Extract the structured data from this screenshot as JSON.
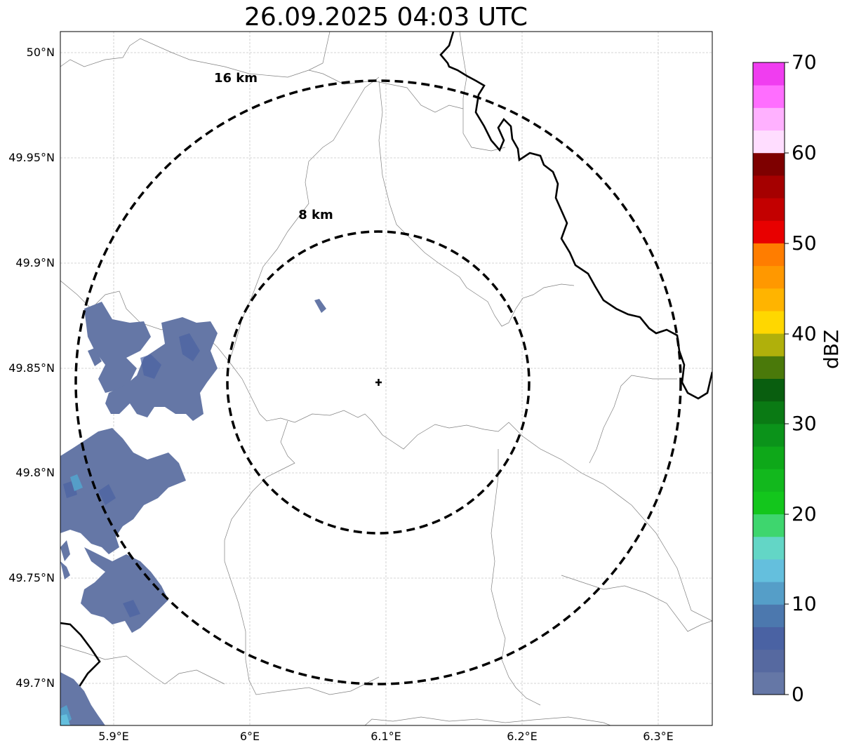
{
  "title": "26.09.2025 04:03 UTC",
  "axes": {
    "y_ticks": [
      "50°N",
      "49.95°N",
      "49.9°N",
      "49.85°N",
      "49.8°N",
      "49.75°N",
      "49.7°N"
    ],
    "x_ticks": [
      "5.9°E",
      "6°E",
      "6.1°E",
      "6.2°E",
      "6.3°E"
    ]
  },
  "rings": [
    {
      "label": "16 km",
      "radius_km": 16
    },
    {
      "label": "8 km",
      "radius_km": 8
    }
  ],
  "radar_center": {
    "lat": 49.843,
    "lon": 6.094
  },
  "colorbar": {
    "label": "dBZ",
    "ticks": [
      "70",
      "60",
      "50",
      "40",
      "30",
      "20",
      "10",
      "0"
    ],
    "min": 0,
    "max": 70,
    "step": 2.5,
    "colors": [
      "#6577a6",
      "#5669a0",
      "#4a62a3",
      "#4c78ae",
      "#559ec8",
      "#64bfdd",
      "#63d6c6",
      "#3ed66e",
      "#13c61c",
      "#12b81d",
      "#0ea819",
      "#0b931a",
      "#0a7a14",
      "#095e0f",
      "#4a790a",
      "#b0b00b",
      "#ffd700",
      "#ffb400",
      "#ff9800",
      "#ff7d00",
      "#e80000",
      "#c30000",
      "#a50000",
      "#7e0000",
      "#ffddff",
      "#ffb1ff",
      "#ff6eff",
      "#f03df0"
    ]
  }
}
